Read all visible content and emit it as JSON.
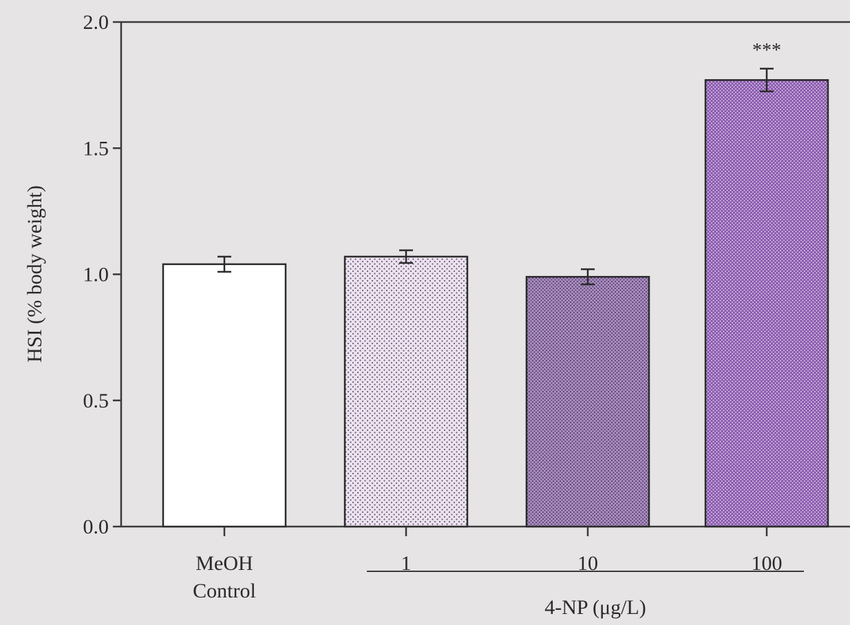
{
  "colors": {
    "background": "#e6e4e5",
    "axis": "#3a3a3a",
    "text": "#2a2a2a",
    "bar_outline": "#2b2b2b",
    "fill_control": "#ffffff",
    "fill_low": "#ebe3ee",
    "fill_mid": "#a890bd",
    "fill_high": "#8d5db0",
    "dots_low": "#6f5a7c",
    "dots_mid": "#5e3d78",
    "dots_high": "#f0e6f6"
  },
  "chart_data": {
    "type": "bar",
    "title": "",
    "ylabel": "HSI (% body weight)",
    "xlabel": "4-NP (μg/L)",
    "ylim": [
      0,
      2.0
    ],
    "yticks": [
      "0.0",
      "0.5",
      "1.0",
      "1.5",
      "2.0"
    ],
    "grid": false,
    "categories": [
      {
        "label": "MeOH",
        "label2": "Control"
      },
      {
        "label": "1",
        "label2": ""
      },
      {
        "label": "10",
        "label2": ""
      },
      {
        "label": "100",
        "label2": ""
      }
    ],
    "values": [
      1.04,
      1.07,
      0.99,
      1.77
    ],
    "errors": [
      0.03,
      0.025,
      0.03,
      0.045
    ],
    "annotations": [
      "",
      "",
      "",
      "***"
    ],
    "fills": [
      "none",
      "light-dotted",
      "medium-dotted",
      "dense-dotted"
    ]
  }
}
